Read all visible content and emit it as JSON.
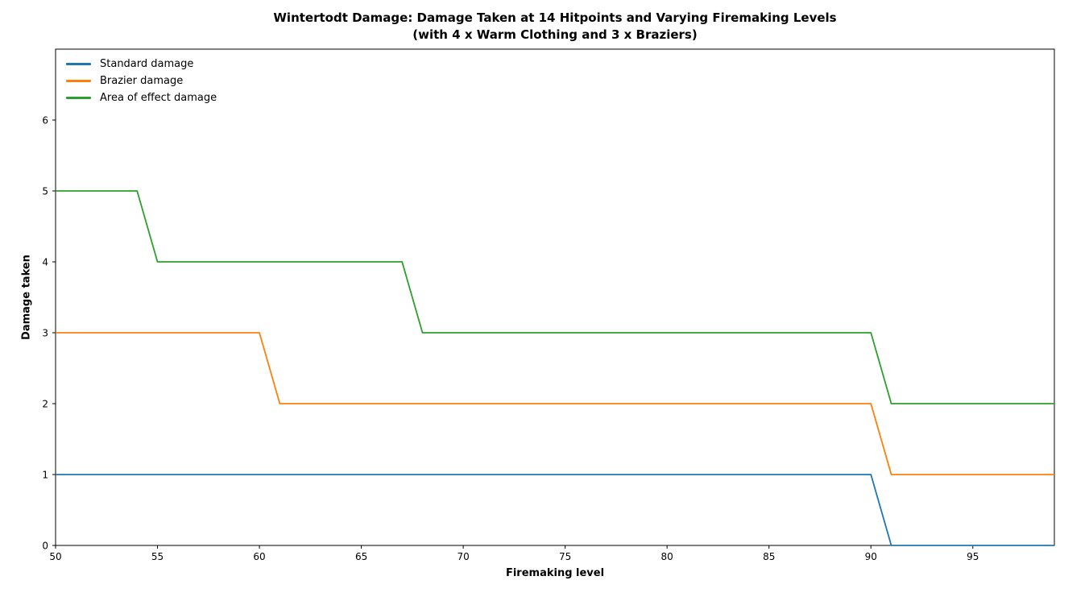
{
  "chart_data": {
    "type": "line",
    "title": "Wintertodt Damage: Damage Taken at 14 Hitpoints and Varying Firemaking Levels",
    "subtitle": "(with 4 x Warm Clothing and 3 x Braziers)",
    "xlabel": "Firemaking level",
    "ylabel": "Damage taken",
    "xlim": [
      50,
      99
    ],
    "ylim": [
      0,
      7
    ],
    "x_ticks": [
      50,
      55,
      60,
      65,
      70,
      75,
      80,
      85,
      90,
      95
    ],
    "y_ticks": [
      0,
      1,
      2,
      3,
      4,
      5,
      6
    ],
    "grid": false,
    "legend_position": "upper-left",
    "background_color": "#ffffff",
    "axis_color": "#000000",
    "x": [
      50,
      51,
      52,
      53,
      54,
      55,
      56,
      57,
      58,
      59,
      60,
      61,
      62,
      63,
      64,
      65,
      66,
      67,
      68,
      69,
      70,
      71,
      72,
      73,
      74,
      75,
      76,
      77,
      78,
      79,
      80,
      81,
      82,
      83,
      84,
      85,
      86,
      87,
      88,
      89,
      90,
      91,
      92,
      93,
      94,
      95,
      96,
      97,
      98,
      99
    ],
    "series": [
      {
        "name": "Standard damage",
        "color": "#1f77b4",
        "values": [
          1,
          1,
          1,
          1,
          1,
          1,
          1,
          1,
          1,
          1,
          1,
          1,
          1,
          1,
          1,
          1,
          1,
          1,
          1,
          1,
          1,
          1,
          1,
          1,
          1,
          1,
          1,
          1,
          1,
          1,
          1,
          1,
          1,
          1,
          1,
          1,
          1,
          1,
          1,
          1,
          1,
          0,
          0,
          0,
          0,
          0,
          0,
          0,
          0,
          0
        ]
      },
      {
        "name": "Brazier damage",
        "color": "#ff7f0e",
        "values": [
          3,
          3,
          3,
          3,
          3,
          3,
          3,
          3,
          3,
          3,
          3,
          2,
          2,
          2,
          2,
          2,
          2,
          2,
          2,
          2,
          2,
          2,
          2,
          2,
          2,
          2,
          2,
          2,
          2,
          2,
          2,
          2,
          2,
          2,
          2,
          2,
          2,
          2,
          2,
          2,
          2,
          1,
          1,
          1,
          1,
          1,
          1,
          1,
          1,
          1
        ]
      },
      {
        "name": "Area of effect damage",
        "color": "#2ca02c",
        "values": [
          5,
          5,
          5,
          5,
          5,
          4,
          4,
          4,
          4,
          4,
          4,
          4,
          4,
          4,
          4,
          4,
          4,
          4,
          3,
          3,
          3,
          3,
          3,
          3,
          3,
          3,
          3,
          3,
          3,
          3,
          3,
          3,
          3,
          3,
          3,
          3,
          3,
          3,
          3,
          3,
          3,
          2,
          2,
          2,
          2,
          2,
          2,
          2,
          2,
          2
        ]
      }
    ]
  }
}
